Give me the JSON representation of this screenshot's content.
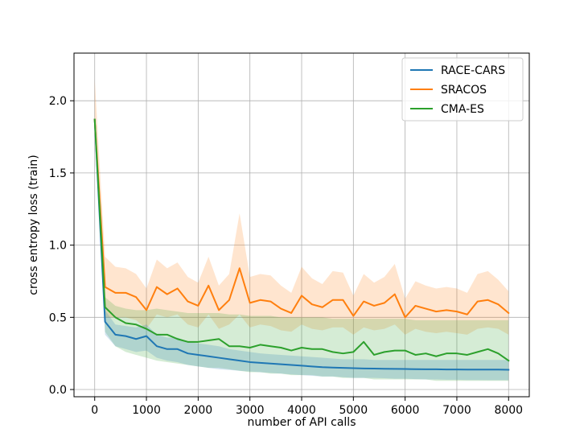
{
  "chart_data": {
    "type": "line",
    "xlabel": "number of API calls",
    "ylabel": "cross entropy loss (train)",
    "xlim": [
      -400,
      8400
    ],
    "ylim": [
      -0.05,
      2.33
    ],
    "xticks": [
      0,
      1000,
      2000,
      3000,
      4000,
      5000,
      6000,
      7000,
      8000
    ],
    "yticks": [
      0.0,
      0.5,
      1.0,
      1.5,
      2.0
    ],
    "xtick_labels": [
      "0",
      "1000",
      "2000",
      "3000",
      "4000",
      "5000",
      "6000",
      "7000",
      "8000"
    ],
    "ytick_labels": [
      "0.0",
      "0.5",
      "1.0",
      "1.5",
      "2.0"
    ],
    "grid": true,
    "legend_position": "top-right",
    "x": [
      0,
      200,
      400,
      600,
      800,
      1000,
      1200,
      1400,
      1600,
      1800,
      2000,
      2200,
      2400,
      2600,
      2800,
      3000,
      3200,
      3400,
      3600,
      3800,
      4000,
      4200,
      4400,
      4600,
      4800,
      5000,
      5200,
      5400,
      5600,
      5800,
      6000,
      6200,
      6400,
      6600,
      6800,
      7000,
      7200,
      7400,
      7600,
      7800,
      8000
    ],
    "series": [
      {
        "name": "RACE-CARS",
        "color": "#1f77b4",
        "values": [
          1.87,
          0.47,
          0.38,
          0.37,
          0.35,
          0.37,
          0.3,
          0.28,
          0.28,
          0.25,
          0.24,
          0.23,
          0.22,
          0.21,
          0.2,
          0.19,
          0.185,
          0.18,
          0.175,
          0.17,
          0.165,
          0.16,
          0.155,
          0.152,
          0.15,
          0.148,
          0.146,
          0.145,
          0.144,
          0.143,
          0.142,
          0.141,
          0.14,
          0.14,
          0.139,
          0.139,
          0.138,
          0.138,
          0.138,
          0.138,
          0.137
        ],
        "lower": [
          1.87,
          0.38,
          0.3,
          0.28,
          0.26,
          0.27,
          0.22,
          0.2,
          0.19,
          0.17,
          0.16,
          0.15,
          0.14,
          0.135,
          0.13,
          0.125,
          0.12,
          0.115,
          0.11,
          0.105,
          0.1,
          0.095,
          0.09,
          0.09,
          0.085,
          0.08,
          0.08,
          0.08,
          0.078,
          0.075,
          0.075,
          0.072,
          0.07,
          0.07,
          0.068,
          0.068,
          0.066,
          0.066,
          0.065,
          0.065,
          0.065
        ],
        "upper": [
          1.87,
          0.55,
          0.45,
          0.44,
          0.43,
          0.45,
          0.38,
          0.36,
          0.36,
          0.33,
          0.32,
          0.31,
          0.3,
          0.28,
          0.27,
          0.26,
          0.25,
          0.245,
          0.24,
          0.235,
          0.23,
          0.225,
          0.22,
          0.215,
          0.21,
          0.21,
          0.21,
          0.205,
          0.205,
          0.205,
          0.205,
          0.205,
          0.205,
          0.205,
          0.205,
          0.205,
          0.205,
          0.205,
          0.205,
          0.205,
          0.205
        ]
      },
      {
        "name": "SRACOS",
        "color": "#ff7f0e",
        "values": [
          1.87,
          0.71,
          0.67,
          0.67,
          0.64,
          0.55,
          0.71,
          0.66,
          0.7,
          0.61,
          0.58,
          0.72,
          0.55,
          0.62,
          0.84,
          0.6,
          0.62,
          0.61,
          0.56,
          0.53,
          0.65,
          0.59,
          0.57,
          0.62,
          0.62,
          0.51,
          0.61,
          0.58,
          0.6,
          0.66,
          0.5,
          0.58,
          0.56,
          0.54,
          0.55,
          0.54,
          0.52,
          0.61,
          0.62,
          0.59,
          0.53
        ],
        "lower": [
          1.87,
          0.5,
          0.5,
          0.5,
          0.48,
          0.42,
          0.52,
          0.5,
          0.52,
          0.45,
          0.43,
          0.52,
          0.42,
          0.45,
          0.52,
          0.43,
          0.45,
          0.44,
          0.41,
          0.4,
          0.45,
          0.42,
          0.41,
          0.43,
          0.43,
          0.38,
          0.43,
          0.41,
          0.42,
          0.45,
          0.38,
          0.42,
          0.4,
          0.39,
          0.4,
          0.39,
          0.38,
          0.42,
          0.43,
          0.42,
          0.38
        ],
        "upper": [
          2.15,
          0.92,
          0.85,
          0.84,
          0.8,
          0.7,
          0.9,
          0.84,
          0.88,
          0.78,
          0.74,
          0.92,
          0.72,
          0.8,
          1.22,
          0.78,
          0.8,
          0.79,
          0.72,
          0.67,
          0.85,
          0.77,
          0.73,
          0.82,
          0.81,
          0.65,
          0.8,
          0.74,
          0.78,
          0.87,
          0.63,
          0.75,
          0.72,
          0.7,
          0.71,
          0.7,
          0.67,
          0.8,
          0.82,
          0.76,
          0.68
        ]
      },
      {
        "name": "CMA-ES",
        "color": "#2ca02c",
        "values": [
          1.87,
          0.57,
          0.5,
          0.46,
          0.45,
          0.42,
          0.38,
          0.38,
          0.35,
          0.33,
          0.33,
          0.34,
          0.35,
          0.3,
          0.3,
          0.29,
          0.31,
          0.3,
          0.29,
          0.27,
          0.29,
          0.28,
          0.28,
          0.26,
          0.25,
          0.26,
          0.33,
          0.24,
          0.26,
          0.27,
          0.27,
          0.24,
          0.25,
          0.23,
          0.25,
          0.25,
          0.24,
          0.26,
          0.28,
          0.25,
          0.2
        ],
        "lower": [
          1.87,
          0.4,
          0.3,
          0.26,
          0.24,
          0.22,
          0.2,
          0.19,
          0.18,
          0.17,
          0.16,
          0.15,
          0.15,
          0.14,
          0.13,
          0.12,
          0.12,
          0.11,
          0.11,
          0.1,
          0.1,
          0.1,
          0.09,
          0.09,
          0.08,
          0.08,
          0.08,
          0.07,
          0.07,
          0.07,
          0.07,
          0.07,
          0.07,
          0.06,
          0.06,
          0.06,
          0.06,
          0.06,
          0.06,
          0.06,
          0.06
        ],
        "upper": [
          1.87,
          0.64,
          0.58,
          0.56,
          0.55,
          0.55,
          0.56,
          0.55,
          0.54,
          0.53,
          0.53,
          0.53,
          0.53,
          0.52,
          0.52,
          0.51,
          0.51,
          0.51,
          0.5,
          0.5,
          0.5,
          0.5,
          0.5,
          0.49,
          0.49,
          0.49,
          0.49,
          0.49,
          0.49,
          0.49,
          0.49,
          0.48,
          0.48,
          0.48,
          0.48,
          0.48,
          0.48,
          0.48,
          0.48,
          0.48,
          0.48
        ]
      }
    ]
  }
}
